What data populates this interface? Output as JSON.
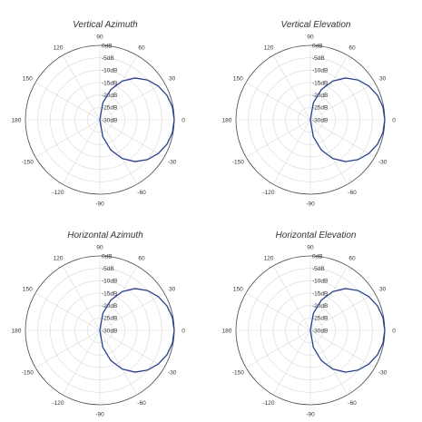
{
  "chart_data": [
    {
      "type": "polar",
      "title": "Vertical Azimuth",
      "angle_unit": "degrees",
      "angle_ticks": [
        "0",
        "30",
        "60",
        "90",
        "120",
        "150",
        "180",
        "-150",
        "-120",
        "-90",
        "-60",
        "-30"
      ],
      "radial_ticks": [
        "0dB",
        "-5dB",
        "-10dB",
        "-15dB",
        "-20dB",
        "-25dB",
        "-30dB"
      ],
      "rlim": [
        -30,
        0
      ],
      "grid": true,
      "series": [
        {
          "color": "#2b3f8f",
          "theta": [
            0,
            10,
            20,
            30,
            40,
            50,
            60,
            70,
            80,
            90,
            -10,
            -20,
            -30,
            -40,
            -50,
            -60,
            -70,
            -80,
            -90
          ],
          "r": [
            0,
            -0.3,
            -1.2,
            -2.8,
            -5,
            -8,
            -12,
            -17,
            -23,
            -30,
            -0.3,
            -1.2,
            -2.8,
            -5,
            -8,
            -12,
            -17,
            -23,
            -30
          ]
        }
      ]
    },
    {
      "type": "polar",
      "title": "Vertical Elevation",
      "angle_unit": "degrees",
      "angle_ticks": [
        "0",
        "30",
        "60",
        "90",
        "120",
        "150",
        "180",
        "-150",
        "-120",
        "-90",
        "-60",
        "-30"
      ],
      "radial_ticks": [
        "0dB",
        "-5dB",
        "-10dB",
        "-15dB",
        "-20dB",
        "-25dB",
        "-30dB"
      ],
      "rlim": [
        -30,
        0
      ],
      "grid": true,
      "series": [
        {
          "color": "#2b3f8f",
          "theta": [
            0,
            10,
            20,
            30,
            40,
            50,
            60,
            70,
            80,
            90,
            -10,
            -20,
            -30,
            -40,
            -50,
            -60,
            -70,
            -80,
            -90
          ],
          "r": [
            0,
            -0.3,
            -1.2,
            -2.8,
            -5,
            -8,
            -12,
            -17,
            -23,
            -30,
            -0.3,
            -1.2,
            -2.8,
            -5,
            -8,
            -12,
            -17,
            -23,
            -30
          ]
        }
      ]
    },
    {
      "type": "polar",
      "title": "Horizontal Azimuth",
      "angle_unit": "degrees",
      "angle_ticks": [
        "0",
        "30",
        "60",
        "90",
        "120",
        "150",
        "180",
        "-150",
        "-120",
        "-90",
        "-60",
        "-30"
      ],
      "radial_ticks": [
        "0dB",
        "-5dB",
        "-10dB",
        "-15dB",
        "-20dB",
        "-25dB",
        "-30dB"
      ],
      "rlim": [
        -30,
        0
      ],
      "grid": true,
      "series": [
        {
          "color": "#2b3f8f",
          "theta": [
            0,
            10,
            20,
            30,
            40,
            50,
            60,
            70,
            80,
            90,
            -10,
            -20,
            -30,
            -40,
            -50,
            -60,
            -70,
            -80,
            -90
          ],
          "r": [
            0,
            -0.3,
            -1.2,
            -2.8,
            -5,
            -8,
            -12,
            -17,
            -23,
            -30,
            -0.3,
            -1.2,
            -2.8,
            -5,
            -8,
            -12,
            -17,
            -23,
            -30
          ]
        }
      ]
    },
    {
      "type": "polar",
      "title": "Horizontal Elevation",
      "angle_unit": "degrees",
      "angle_ticks": [
        "0",
        "30",
        "60",
        "90",
        "120",
        "150",
        "180",
        "-150",
        "-120",
        "-90",
        "-60",
        "-30"
      ],
      "radial_ticks": [
        "0dB",
        "-5dB",
        "-10dB",
        "-15dB",
        "-20dB",
        "-25dB",
        "-30dB"
      ],
      "rlim": [
        -30,
        0
      ],
      "grid": true,
      "series": [
        {
          "color": "#2b3f8f",
          "theta": [
            0,
            10,
            20,
            30,
            40,
            50,
            60,
            70,
            80,
            90,
            -10,
            -20,
            -30,
            -40,
            -50,
            -60,
            -70,
            -80,
            -90
          ],
          "r": [
            0,
            -0.3,
            -1.2,
            -2.8,
            -5,
            -8,
            -12,
            -17,
            -23,
            -30,
            -0.3,
            -1.2,
            -2.8,
            -5,
            -8,
            -12,
            -17,
            -23,
            -30
          ]
        }
      ]
    }
  ]
}
